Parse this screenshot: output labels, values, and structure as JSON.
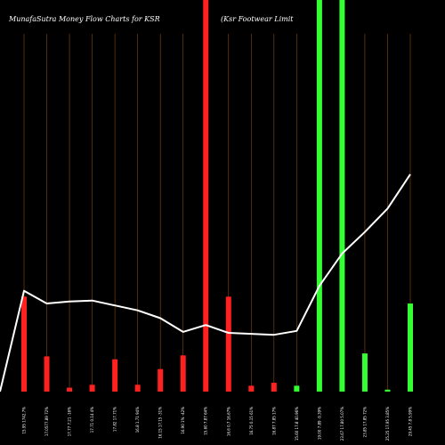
{
  "chart_data": {
    "type": "bar",
    "title_left": "MunafaSutra  Money Flow  Charts for KSR",
    "title_right": "(Ksr Footwear Limit",
    "colors": {
      "background": "#000000",
      "up": "#33ff33",
      "down": "#ff2020",
      "gridline": "#8a4a10",
      "line": "#ffffff",
      "text": "#ffffff"
    },
    "categories": [
      "15.95 1742.7%",
      "17.0577.89 72%",
      "17.77 7.21 -16%",
      "17.71 0.14 4%",
      "17.82 17.71%",
      "16.8   1.71 94%",
      "16.15 17.15 -31%",
      "16.90 1% -42%",
      "15.60 7.87 64%",
      "16.6   0.7 16.67%",
      "16.75 0.15 61%",
      "16.87 7.85 17%",
      "15.60 17.8 40.96%",
      "19.00 7.89 -9.39%",
      "23.67 17.80 5.07%",
      "23.85 17.85 72%",
      "25.25 17.95 3.85%",
      "29.45 7.8 5.99%"
    ],
    "bars": [
      {
        "value": 0.97,
        "direction": "down"
      },
      {
        "value": 0.36,
        "direction": "down"
      },
      {
        "value": 0.04,
        "direction": "down"
      },
      {
        "value": 0.07,
        "direction": "down"
      },
      {
        "value": 0.33,
        "direction": "down"
      },
      {
        "value": 0.07,
        "direction": "down"
      },
      {
        "value": 0.23,
        "direction": "down"
      },
      {
        "value": 0.37,
        "direction": "down"
      },
      {
        "value": 4.0,
        "direction": "down"
      },
      {
        "value": 0.97,
        "direction": "down"
      },
      {
        "value": 0.06,
        "direction": "down"
      },
      {
        "value": 0.09,
        "direction": "down"
      },
      {
        "value": 0.06,
        "direction": "up"
      },
      {
        "value": 4.0,
        "direction": "up"
      },
      {
        "value": 4.0,
        "direction": "up"
      },
      {
        "value": 0.39,
        "direction": "up"
      },
      {
        "value": 0.02,
        "direction": "up"
      },
      {
        "value": 0.9,
        "direction": "up"
      }
    ],
    "line": [
      1.03,
      0.9,
      0.92,
      0.93,
      0.88,
      0.83,
      0.75,
      0.61,
      0.68,
      0.6,
      0.59,
      0.58,
      0.62,
      1.08,
      1.41,
      1.63,
      1.87,
      2.22
    ],
    "ylim": [
      0,
      4.0
    ],
    "grid": true,
    "xlabel": "",
    "ylabel": ""
  }
}
